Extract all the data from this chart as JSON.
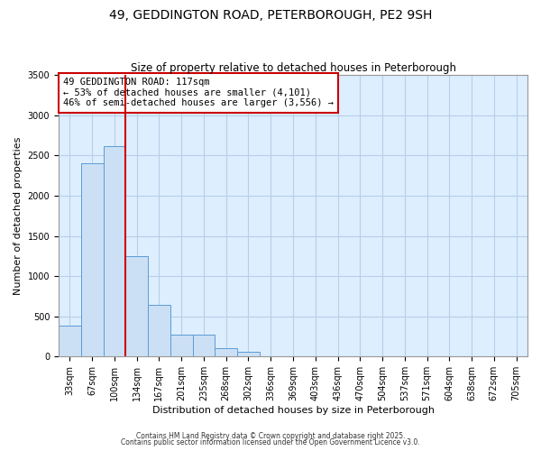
{
  "title": "49, GEDDINGTON ROAD, PETERBOROUGH, PE2 9SH",
  "subtitle": "Size of property relative to detached houses in Peterborough",
  "xlabel": "Distribution of detached houses by size in Peterborough",
  "ylabel": "Number of detached properties",
  "categories": [
    "33sqm",
    "67sqm",
    "100sqm",
    "134sqm",
    "167sqm",
    "201sqm",
    "235sqm",
    "268sqm",
    "302sqm",
    "336sqm",
    "369sqm",
    "403sqm",
    "436sqm",
    "470sqm",
    "504sqm",
    "537sqm",
    "571sqm",
    "604sqm",
    "638sqm",
    "672sqm",
    "705sqm"
  ],
  "values": [
    390,
    2400,
    2620,
    1250,
    640,
    275,
    275,
    105,
    55,
    0,
    0,
    0,
    0,
    0,
    0,
    0,
    0,
    0,
    0,
    0,
    0
  ],
  "bar_color": "#cce0f5",
  "bar_edge_color": "#5b9bd5",
  "vline_color": "#cc0000",
  "vline_x_index": 2,
  "ylim": [
    0,
    3500
  ],
  "yticks": [
    0,
    500,
    1000,
    1500,
    2000,
    2500,
    3000,
    3500
  ],
  "annotation_title": "49 GEDDINGTON ROAD: 117sqm",
  "annotation_line1": "← 53% of detached houses are smaller (4,101)",
  "annotation_line2": "46% of semi-detached houses are larger (3,556) →",
  "annotation_box_color": "#ffffff",
  "annotation_box_edge": "#cc0000",
  "footer1": "Contains HM Land Registry data © Crown copyright and database right 2025.",
  "footer2": "Contains public sector information licensed under the Open Government Licence v3.0.",
  "bg_color": "#ffffff",
  "axes_bg_color": "#ddeeff",
  "grid_color": "#b8cfe8",
  "title_fontsize": 10,
  "subtitle_fontsize": 8.5,
  "tick_fontsize": 7,
  "label_fontsize": 8
}
